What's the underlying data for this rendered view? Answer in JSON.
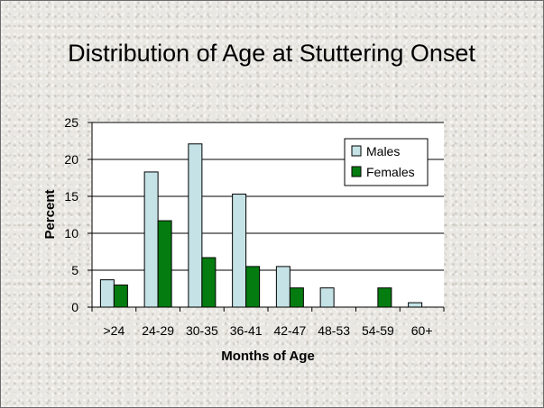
{
  "chart_data": {
    "type": "bar",
    "title": "Distribution of Age at Stuttering Onset",
    "xlabel": "Months of Age",
    "ylabel": "Percent",
    "categories": [
      ">24",
      "24-29",
      "30-35",
      "36-41",
      "42-47",
      "48-53",
      "54-59",
      "60+"
    ],
    "series": [
      {
        "name": "Males",
        "values": [
          3.7,
          18.3,
          22.1,
          15.3,
          5.5,
          2.6,
          0,
          0.6
        ]
      },
      {
        "name": "Females",
        "values": [
          3.0,
          11.7,
          6.7,
          5.5,
          2.6,
          0,
          2.6,
          0
        ]
      }
    ],
    "ylim": [
      0,
      25
    ],
    "yticks": [
      0,
      5,
      10,
      15,
      20,
      25
    ],
    "grid": true,
    "legend_position": "top-right",
    "colors": {
      "Males": "#c5e3e6",
      "Females": "#047c10",
      "plot_background": "#ffffff"
    }
  }
}
